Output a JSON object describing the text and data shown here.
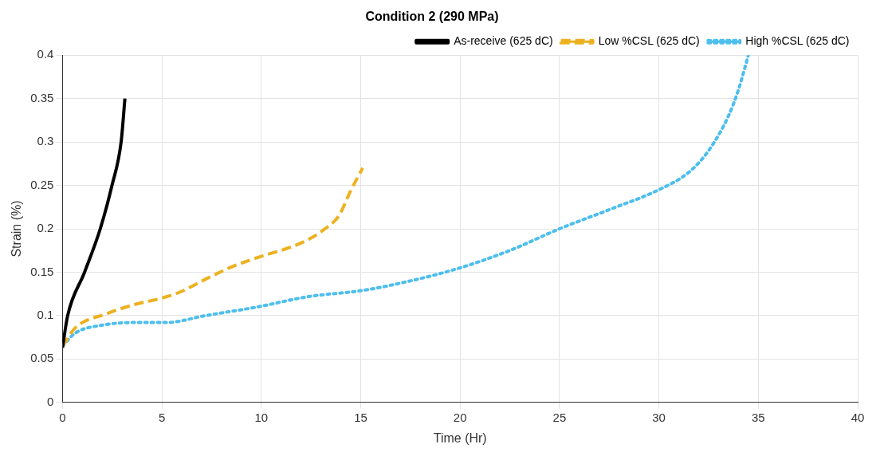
{
  "chart_data": {
    "type": "line",
    "title": "Condition 2 (290 MPa)",
    "xlabel": "Time (Hr)",
    "ylabel": "Strain (%)",
    "xlim": [
      0,
      40
    ],
    "xticks": [
      0,
      5,
      10,
      15,
      20,
      25,
      30,
      35,
      40
    ],
    "ylim": [
      0,
      0.4
    ],
    "yticks": [
      0,
      0.05,
      0.1,
      0.15,
      0.2,
      0.25,
      0.3,
      0.35,
      0.4
    ],
    "grid": true,
    "legend": "top right",
    "marker": "none",
    "series": [
      {
        "name": "As-receive (625 dC)",
        "color": "#000000",
        "line_style": "solid",
        "x": [
          0,
          0.26,
          1.11,
          1.9,
          2.49,
          2.95,
          3.14
        ],
        "values": [
          0.063,
          0.1,
          0.15,
          0.2,
          0.25,
          0.3,
          0.35
        ]
      },
      {
        "name": "Low %CSL (625 dC)",
        "color": "#edb120",
        "line_style": "dashed",
        "x": [
          0,
          0.65,
          2.2,
          3.66,
          4.97,
          5.9,
          7.2,
          8.5,
          9.95,
          11.5,
          12.4,
          13.2,
          13.9,
          14.5,
          15.1
        ],
        "values": [
          0.065,
          0.086,
          0.102,
          0.113,
          0.12,
          0.127,
          0.142,
          0.156,
          0.168,
          0.179,
          0.188,
          0.2,
          0.215,
          0.244,
          0.27
        ]
      },
      {
        "name": "High %CSL (625 dC)",
        "color": "#4dbeee",
        "line_style": "dotted",
        "x": [
          0,
          0.65,
          2,
          3.5,
          5.2,
          7.2,
          9.8,
          12.4,
          15.1,
          17.5,
          20,
          22.5,
          25,
          27.5,
          30,
          31.5,
          32.5,
          33.5,
          34,
          34.5
        ],
        "values": [
          0.065,
          0.08,
          0.089,
          0.092,
          0.092,
          0.1,
          0.11,
          0.122,
          0.129,
          0.14,
          0.155,
          0.175,
          0.2,
          0.222,
          0.245,
          0.265,
          0.29,
          0.33,
          0.36,
          0.4
        ]
      }
    ]
  }
}
